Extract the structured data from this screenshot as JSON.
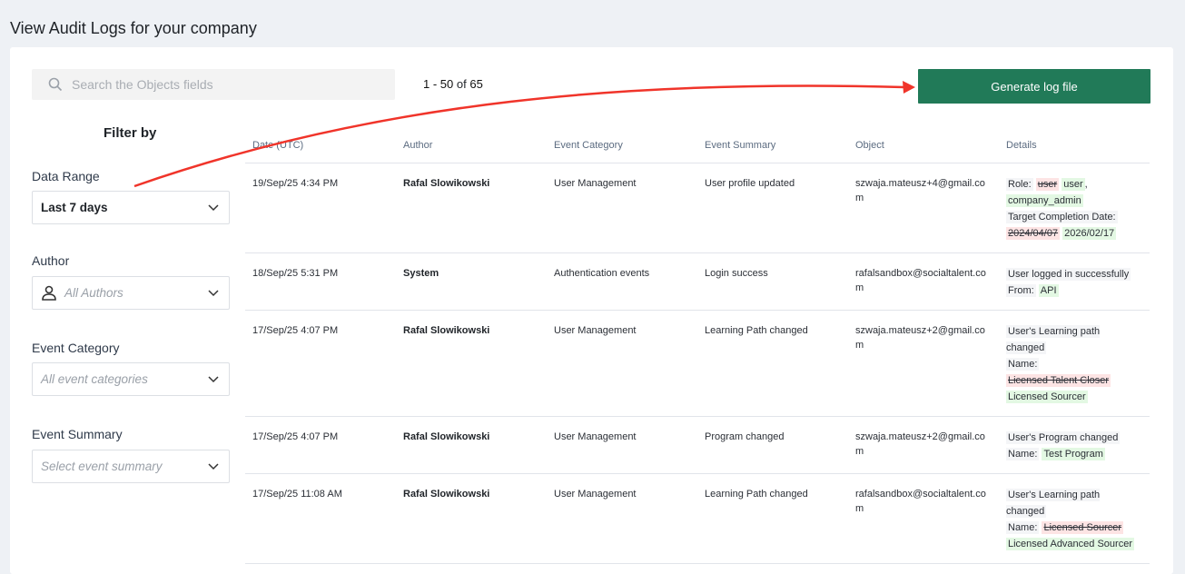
{
  "page": {
    "title": "View Audit Logs for your company"
  },
  "search": {
    "placeholder": "Search the Objects fields",
    "icon": "search-icon"
  },
  "pagination": {
    "range": "1 - 50",
    "of": "of",
    "total": "65"
  },
  "generate_button": {
    "label": "Generate log file",
    "color": "#217a58"
  },
  "filters": {
    "title": "Filter by",
    "date_range": {
      "label": "Data Range",
      "value": "Last 7 days"
    },
    "author": {
      "label": "Author",
      "placeholder": "All Authors",
      "icon": "user-icon"
    },
    "event_category": {
      "label": "Event Category",
      "placeholder": "All event categories"
    },
    "event_summary": {
      "label": "Event Summary",
      "placeholder": "Select event summary"
    }
  },
  "table": {
    "columns": [
      "Date (UTC)",
      "Author",
      "Event Category",
      "Event Summary",
      "Object",
      "Details"
    ],
    "rows": [
      {
        "date": "19/Sep/25 4:34 PM",
        "author": "Rafal Slowikowski",
        "category": "User Management",
        "summary": "User profile updated",
        "object": "szwaja.mateusz+4@gmail.com",
        "details": [
          [
            {
              "t": "Role:",
              "k": "plain"
            },
            {
              "t": "user",
              "k": "del"
            },
            {
              "t": "user",
              "k": "ins"
            },
            {
              "t": ",",
              "k": "txt"
            }
          ],
          [
            {
              "t": "company_admin",
              "k": "ins"
            }
          ],
          [
            {
              "t": "Target Completion Date:",
              "k": "plain"
            }
          ],
          [
            {
              "t": "2024/04/07",
              "k": "del"
            },
            {
              "t": "2026/02/17",
              "k": "ins"
            }
          ]
        ]
      },
      {
        "date": "18/Sep/25 5:31 PM",
        "author": "System",
        "category": "Authentication events",
        "summary": "Login success",
        "object": "rafalsandbox@socialtalent.com",
        "details": [
          [
            {
              "t": "User logged in successfully",
              "k": "plain"
            }
          ],
          [
            {
              "t": "From:",
              "k": "plain"
            },
            {
              "t": "API",
              "k": "ins"
            }
          ]
        ]
      },
      {
        "date": "17/Sep/25 4:07 PM",
        "author": "Rafal Slowikowski",
        "category": "User Management",
        "summary": "Learning Path changed",
        "object": "szwaja.mateusz+2@gmail.com",
        "details": [
          [
            {
              "t": "User's Learning path changed",
              "k": "plain"
            }
          ],
          [
            {
              "t": "Name:",
              "k": "plain"
            }
          ],
          [
            {
              "t": "Licensed Talent Closer",
              "k": "del"
            }
          ],
          [
            {
              "t": "Licensed Sourcer",
              "k": "ins"
            }
          ]
        ]
      },
      {
        "date": "17/Sep/25 4:07 PM",
        "author": "Rafal Slowikowski",
        "category": "User Management",
        "summary": "Program changed",
        "object": "szwaja.mateusz+2@gmail.com",
        "details": [
          [
            {
              "t": "User's Program changed",
              "k": "plain"
            }
          ],
          [
            {
              "t": "Name:",
              "k": "plain"
            },
            {
              "t": "Test Program",
              "k": "ins"
            }
          ]
        ]
      },
      {
        "date": "17/Sep/25 11:08 AM",
        "author": "Rafal Slowikowski",
        "category": "User Management",
        "summary": "Learning Path changed",
        "object": "rafalsandbox@socialtalent.com",
        "details": [
          [
            {
              "t": "User's Learning path changed",
              "k": "plain"
            }
          ],
          [
            {
              "t": "Name:",
              "k": "plain"
            },
            {
              "t": "Licensed Sourcer",
              "k": "del"
            }
          ],
          [
            {
              "t": "Licensed Advanced Sourcer",
              "k": "ins"
            }
          ]
        ]
      }
    ]
  },
  "annotation": {
    "arrow_color": "#f0342a"
  }
}
